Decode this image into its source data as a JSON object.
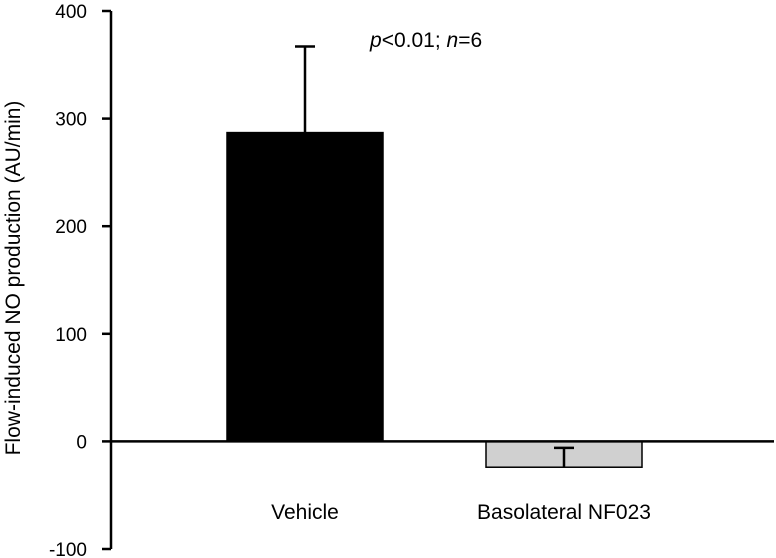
{
  "chart_data": {
    "type": "bar",
    "categories": [
      "Vehicle",
      "Basolateral NF023"
    ],
    "values": [
      287,
      -24
    ],
    "error_bars": [
      80,
      18
    ],
    "bar_colors": [
      "#000000",
      "#d0d0d0"
    ],
    "ylabel": "Flow-induced NO production (AU/min)",
    "xlabel": "",
    "ylim": [
      -100,
      400
    ],
    "yticks": [
      -100,
      0,
      100,
      200,
      300,
      400
    ],
    "grid": false,
    "annotation": {
      "p_italic": "p",
      "p_text": "<0.01; ",
      "n_italic": "n",
      "n_text": "=6"
    }
  }
}
